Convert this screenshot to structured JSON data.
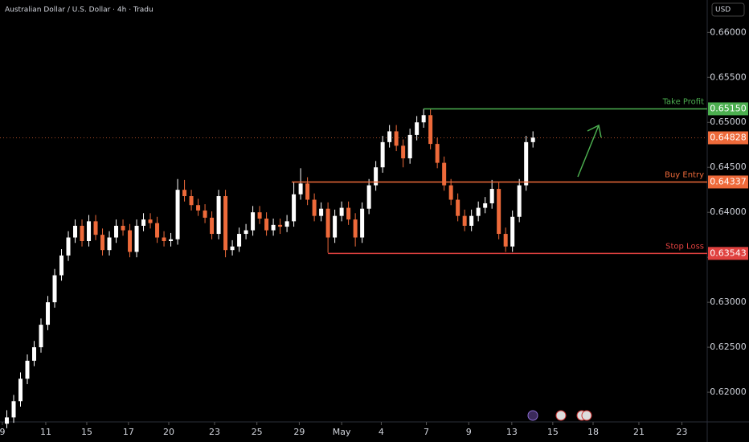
{
  "chart_data": {
    "type": "candlestick",
    "title": "Australian Dollar / U.S. Dollar · 4h · Tradu",
    "currency": "USD",
    "up_color": "#ffffff",
    "down_color": "#ee6a3a",
    "xlim": [
      0,
      103.5
    ],
    "ylim": [
      0.6167,
      0.6636
    ],
    "yticks": [
      {
        "value": 0.66,
        "label": "0.66000"
      },
      {
        "value": 0.655,
        "label": "0.65500"
      },
      {
        "value": 0.65,
        "label": "0.65000"
      },
      {
        "value": 0.645,
        "label": "0.64500"
      },
      {
        "value": 0.64,
        "label": "0.64000"
      },
      {
        "value": 0.635,
        "label": "0.63500"
      },
      {
        "value": 0.63,
        "label": "0.63000"
      },
      {
        "value": 0.625,
        "label": "0.62500"
      },
      {
        "value": 0.62,
        "label": "0.62000"
      }
    ],
    "xticks": [
      {
        "value": 0.35,
        "label": "9"
      },
      {
        "value": 6.7,
        "label": "11"
      },
      {
        "value": 12.7,
        "label": "15"
      },
      {
        "value": 18.8,
        "label": "17"
      },
      {
        "value": 24.7,
        "label": "20"
      },
      {
        "value": 31.4,
        "label": "23"
      },
      {
        "value": 37.6,
        "label": "25"
      },
      {
        "value": 43.8,
        "label": "29"
      },
      {
        "value": 50,
        "label": "May"
      },
      {
        "value": 55.8,
        "label": "4"
      },
      {
        "value": 62.4,
        "label": "7"
      },
      {
        "value": 68.6,
        "label": "9"
      },
      {
        "value": 74.9,
        "label": "13"
      },
      {
        "value": 80.9,
        "label": "15"
      },
      {
        "value": 86.8,
        "label": "18"
      },
      {
        "value": 93.5,
        "label": "21"
      },
      {
        "value": 99.8,
        "label": "23"
      }
    ],
    "x": [
      1,
      2,
      3,
      4,
      5,
      6,
      7,
      8,
      9,
      10,
      11,
      12,
      13,
      14,
      15,
      16,
      17,
      18,
      19,
      20,
      21,
      22,
      23,
      24,
      25,
      26,
      27,
      28,
      29,
      30,
      31,
      32,
      33,
      34,
      35,
      36,
      37,
      38,
      39,
      40,
      41,
      42,
      43,
      44,
      45,
      46,
      47,
      48,
      49,
      50,
      51,
      52,
      53,
      54,
      55,
      56,
      57,
      58,
      59,
      60,
      61,
      62,
      63,
      64,
      65,
      66,
      67,
      68,
      69,
      70,
      71,
      72,
      73,
      74,
      75,
      76,
      77,
      78
    ],
    "open": [
      0.6165,
      0.6172,
      0.619,
      0.6215,
      0.6235,
      0.625,
      0.6275,
      0.63,
      0.633,
      0.6352,
      0.6372,
      0.6385,
      0.6368,
      0.639,
      0.6375,
      0.6358,
      0.6372,
      0.6385,
      0.638,
      0.6356,
      0.6385,
      0.6392,
      0.6388,
      0.6372,
      0.6368,
      0.637,
      0.6425,
      0.6418,
      0.6408,
      0.6402,
      0.6394,
      0.6376,
      0.6418,
      0.6358,
      0.6362,
      0.6376,
      0.638,
      0.64,
      0.6393,
      0.638,
      0.6386,
      0.6384,
      0.639,
      0.642,
      0.6432,
      0.6414,
      0.6396,
      0.6404,
      0.6372,
      0.6396,
      0.6405,
      0.6392,
      0.6372,
      0.6404,
      0.643,
      0.645,
      0.6478,
      0.649,
      0.6474,
      0.646,
      0.6486,
      0.65,
      0.6508,
      0.6476,
      0.6455,
      0.643,
      0.6414,
      0.6396,
      0.6385,
      0.6396,
      0.6405,
      0.641,
      0.6426,
      0.6376,
      0.6362,
      0.6395,
      0.643,
      0.6478
    ],
    "high": [
      0.618,
      0.6197,
      0.6222,
      0.6242,
      0.6257,
      0.6282,
      0.6307,
      0.6337,
      0.6359,
      0.6379,
      0.6392,
      0.6392,
      0.6397,
      0.6397,
      0.6382,
      0.6379,
      0.6392,
      0.6392,
      0.6387,
      0.6392,
      0.6399,
      0.6399,
      0.6395,
      0.6379,
      0.6377,
      0.6437,
      0.6436,
      0.6425,
      0.6415,
      0.6409,
      0.6401,
      0.6425,
      0.6425,
      0.6369,
      0.6383,
      0.6387,
      0.6407,
      0.6407,
      0.64,
      0.6393,
      0.6393,
      0.6397,
      0.6434,
      0.6449,
      0.6439,
      0.6421,
      0.6411,
      0.6411,
      0.6403,
      0.6412,
      0.6412,
      0.6399,
      0.6411,
      0.6437,
      0.6457,
      0.6485,
      0.6497,
      0.6497,
      0.6481,
      0.6493,
      0.6507,
      0.6515,
      0.6515,
      0.6483,
      0.6462,
      0.6437,
      0.6421,
      0.6403,
      0.6403,
      0.6412,
      0.6417,
      0.6436,
      0.6433,
      0.6383,
      0.6402,
      0.6437,
      0.6485,
      0.649
    ],
    "low": [
      0.616,
      0.6166,
      0.6184,
      0.6209,
      0.6229,
      0.6244,
      0.6269,
      0.6294,
      0.6324,
      0.6346,
      0.6366,
      0.6362,
      0.6362,
      0.6369,
      0.6352,
      0.6352,
      0.6366,
      0.6374,
      0.635,
      0.635,
      0.6379,
      0.6382,
      0.6366,
      0.6362,
      0.6362,
      0.6364,
      0.6412,
      0.6402,
      0.6396,
      0.6388,
      0.637,
      0.637,
      0.635,
      0.6352,
      0.6356,
      0.637,
      0.6374,
      0.6387,
      0.6374,
      0.6374,
      0.6376,
      0.6378,
      0.6384,
      0.6414,
      0.6408,
      0.639,
      0.639,
      0.6355,
      0.6366,
      0.639,
      0.6386,
      0.6362,
      0.6366,
      0.6398,
      0.6424,
      0.6444,
      0.6472,
      0.6468,
      0.645,
      0.6454,
      0.648,
      0.6494,
      0.647,
      0.6449,
      0.6424,
      0.6408,
      0.639,
      0.6379,
      0.6379,
      0.639,
      0.6399,
      0.6404,
      0.637,
      0.6356,
      0.6356,
      0.6389,
      0.6424,
      0.6472
    ],
    "close": [
      0.6172,
      0.619,
      0.6215,
      0.6235,
      0.625,
      0.6275,
      0.63,
      0.633,
      0.6352,
      0.6372,
      0.6385,
      0.6368,
      0.639,
      0.6375,
      0.6358,
      0.6372,
      0.6385,
      0.638,
      0.6356,
      0.6385,
      0.6392,
      0.6388,
      0.6372,
      0.6368,
      0.637,
      0.6425,
      0.6418,
      0.6408,
      0.6402,
      0.6394,
      0.6376,
      0.6418,
      0.6358,
      0.6362,
      0.6376,
      0.638,
      0.64,
      0.6393,
      0.638,
      0.6386,
      0.6384,
      0.639,
      0.642,
      0.6432,
      0.6414,
      0.6396,
      0.6404,
      0.6372,
      0.6396,
      0.6405,
      0.6392,
      0.6372,
      0.6404,
      0.643,
      0.645,
      0.6478,
      0.649,
      0.6474,
      0.646,
      0.6486,
      0.65,
      0.6508,
      0.6476,
      0.6455,
      0.643,
      0.6414,
      0.6396,
      0.6385,
      0.6396,
      0.6405,
      0.641,
      0.6426,
      0.6376,
      0.6362,
      0.6395,
      0.643,
      0.6478,
      0.6483
    ],
    "levels": [
      {
        "name": "Take Profit",
        "value": 0.6515,
        "value_label": "0.65150",
        "color": "#4caf50",
        "start": 62
      },
      {
        "name": "Buy Entry",
        "value": 0.64337,
        "value_label": "0.64337",
        "color": "#ee6a3a",
        "start": 42.7
      },
      {
        "name": "Stop Loss",
        "value": 0.63543,
        "value_label": "0.63543",
        "color": "#e0413f",
        "start": 48
      }
    ],
    "last_price": {
      "value": 0.64828,
      "label": "0.64828",
      "color": "#ee6a3a"
    }
  }
}
